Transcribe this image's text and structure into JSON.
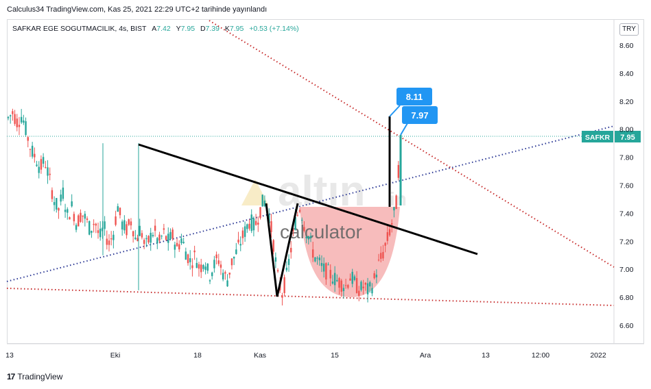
{
  "header": {
    "published_text": "Calculus34 TradingView.com, Kas 25, 2021 22:29 UTC+2 tarihinde yayınlandı"
  },
  "legend": {
    "symbol": "SAFKAR EGE SOGUTMACILIK, 4s, BIST",
    "open_label": "A",
    "open": "7.42",
    "high_label": "Y",
    "high": "7.95",
    "low_label": "D",
    "low": "7.39",
    "close_label": "K",
    "close": "7.95",
    "change": "+0.53 (+7.14%)"
  },
  "currency_button": "TRY",
  "footer": {
    "brand": "TradingView"
  },
  "watermark": {
    "big": "altın",
    "small": "in",
    "sub": "calculator"
  },
  "price_tag": {
    "symbol": "SAFKR",
    "value": "7.95"
  },
  "callouts": [
    {
      "label": "8.11"
    },
    {
      "label": "7.97"
    }
  ],
  "colors": {
    "up": "#26a69a",
    "down": "#ef5350",
    "red_dots": "#c62828",
    "blue_dots": "#283593",
    "callout": "#2196f3",
    "cup": "#f4a6a6"
  },
  "chart_data": {
    "type": "candlestick",
    "y_axis_ticks": [
      "8.60",
      "8.40",
      "8.20",
      "8.00",
      "7.80",
      "7.60",
      "7.40",
      "7.20",
      "7.00",
      "6.80",
      "6.60"
    ],
    "x_axis_ticks": [
      "13",
      "Eki",
      "18",
      "Kas",
      "15",
      "Ara",
      "13",
      "12:00",
      "2022"
    ],
    "ylim": [
      6.5,
      8.72
    ],
    "close_series": [
      8.08,
      8.12,
      8.05,
      8.1,
      7.98,
      7.85,
      7.8,
      7.72,
      7.78,
      7.65,
      7.5,
      7.42,
      7.55,
      7.38,
      7.45,
      7.32,
      7.4,
      7.36,
      7.28,
      7.35,
      7.22,
      7.3,
      7.18,
      7.25,
      7.45,
      7.32,
      7.28,
      7.35,
      7.2,
      7.3,
      7.15,
      7.22,
      7.28,
      7.18,
      7.26,
      7.2,
      7.24,
      7.15,
      7.22,
      7.12,
      7.05,
      7.1,
      7.0,
      7.08,
      6.95,
      7.02,
      7.08,
      6.98,
      6.92,
      7.05,
      7.12,
      7.2,
      7.28,
      7.35,
      7.3,
      7.4,
      7.5,
      7.42,
      7.22,
      6.95,
      6.82,
      6.95,
      7.15,
      7.35,
      7.45,
      7.3,
      7.22,
      7.1,
      7.05,
      7.0,
      6.98,
      6.95,
      6.92,
      6.9,
      6.88,
      6.95,
      6.9,
      6.85,
      6.88,
      6.84,
      6.9,
      7.02,
      7.1,
      7.2,
      7.32,
      7.45,
      7.95
    ],
    "callouts": [
      {
        "label": "8.11",
        "value": 8.11
      },
      {
        "label": "7.97",
        "value": 7.97
      }
    ],
    "last_price": 7.95
  }
}
